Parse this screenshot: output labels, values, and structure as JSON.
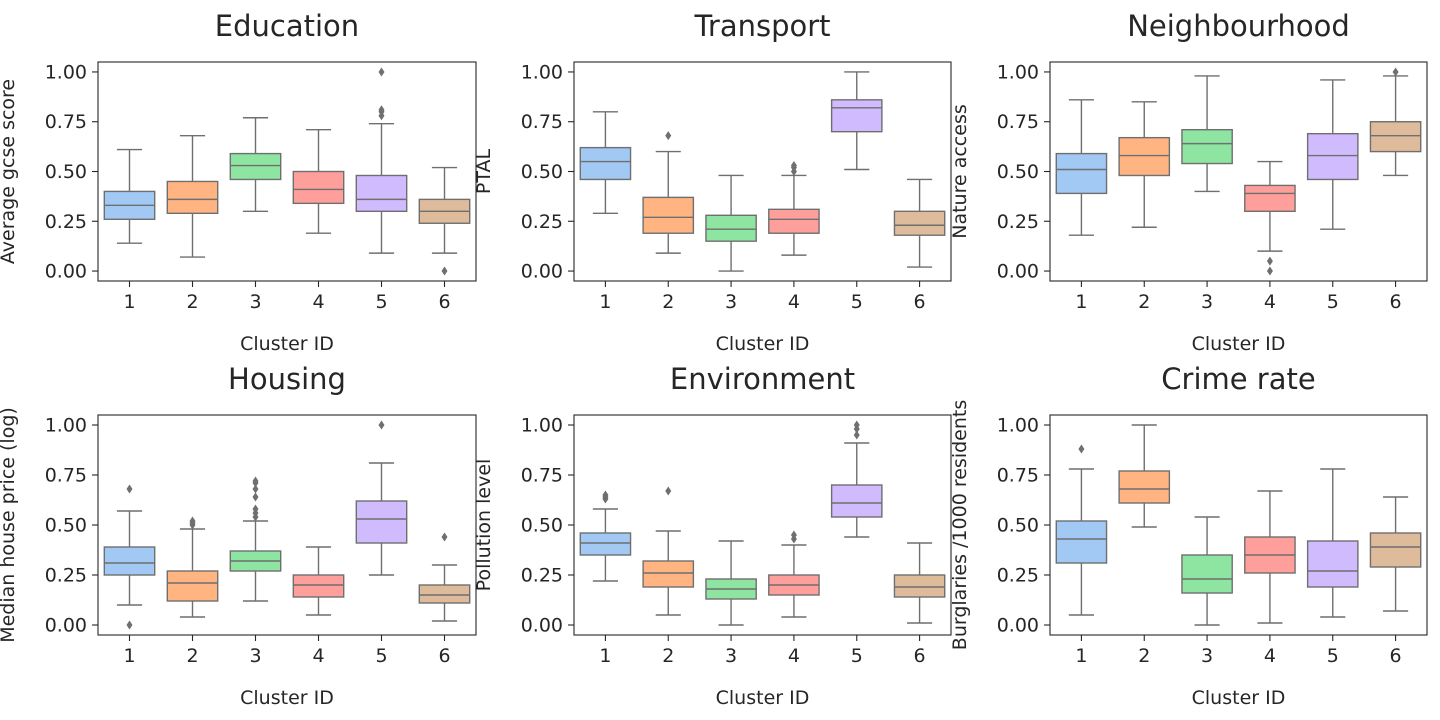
{
  "chart_data": [
    {
      "type": "box",
      "title": "Education",
      "xlabel": "Cluster ID",
      "ylabel": "Average gcse score",
      "categories": [
        "1",
        "2",
        "3",
        "4",
        "5",
        "6"
      ],
      "yticks": [
        "0.00",
        "0.25",
        "0.50",
        "0.75",
        "1.00"
      ],
      "ylim": [
        -0.05,
        1.05
      ],
      "boxes": [
        {
          "whislo": 0.14,
          "q1": 0.26,
          "med": 0.33,
          "q3": 0.4,
          "whishi": 0.61,
          "fliers": []
        },
        {
          "whislo": 0.07,
          "q1": 0.29,
          "med": 0.36,
          "q3": 0.45,
          "whishi": 0.68,
          "fliers": []
        },
        {
          "whislo": 0.3,
          "q1": 0.46,
          "med": 0.53,
          "q3": 0.59,
          "whishi": 0.77,
          "fliers": []
        },
        {
          "whislo": 0.19,
          "q1": 0.34,
          "med": 0.41,
          "q3": 0.5,
          "whishi": 0.71,
          "fliers": []
        },
        {
          "whislo": 0.09,
          "q1": 0.3,
          "med": 0.36,
          "q3": 0.48,
          "whishi": 0.74,
          "fliers": [
            0.78,
            0.8,
            0.81,
            1.0
          ]
        },
        {
          "whislo": 0.09,
          "q1": 0.24,
          "med": 0.3,
          "q3": 0.36,
          "whishi": 0.52,
          "fliers": [
            0.0
          ]
        }
      ]
    },
    {
      "type": "box",
      "title": "Transport",
      "xlabel": "Cluster ID",
      "ylabel": "PTAL",
      "categories": [
        "1",
        "2",
        "3",
        "4",
        "5",
        "6"
      ],
      "yticks": [
        "0.00",
        "0.25",
        "0.50",
        "0.75",
        "1.00"
      ],
      "ylim": [
        -0.05,
        1.05
      ],
      "boxes": [
        {
          "whislo": 0.29,
          "q1": 0.46,
          "med": 0.55,
          "q3": 0.62,
          "whishi": 0.8,
          "fliers": []
        },
        {
          "whislo": 0.09,
          "q1": 0.19,
          "med": 0.27,
          "q3": 0.37,
          "whishi": 0.6,
          "fliers": [
            0.68
          ]
        },
        {
          "whislo": 0.0,
          "q1": 0.15,
          "med": 0.21,
          "q3": 0.28,
          "whishi": 0.48,
          "fliers": []
        },
        {
          "whislo": 0.08,
          "q1": 0.19,
          "med": 0.26,
          "q3": 0.31,
          "whishi": 0.48,
          "fliers": [
            0.5,
            0.52,
            0.53
          ]
        },
        {
          "whislo": 0.51,
          "q1": 0.7,
          "med": 0.82,
          "q3": 0.86,
          "whishi": 1.0,
          "fliers": []
        },
        {
          "whislo": 0.02,
          "q1": 0.18,
          "med": 0.23,
          "q3": 0.3,
          "whishi": 0.46,
          "fliers": []
        }
      ]
    },
    {
      "type": "box",
      "title": "Neighbourhood",
      "xlabel": "Cluster ID",
      "ylabel": "Nature access",
      "categories": [
        "1",
        "2",
        "3",
        "4",
        "5",
        "6"
      ],
      "yticks": [
        "0.00",
        "0.25",
        "0.50",
        "0.75",
        "1.00"
      ],
      "ylim": [
        -0.05,
        1.05
      ],
      "boxes": [
        {
          "whislo": 0.18,
          "q1": 0.39,
          "med": 0.51,
          "q3": 0.59,
          "whishi": 0.86,
          "fliers": []
        },
        {
          "whislo": 0.22,
          "q1": 0.48,
          "med": 0.58,
          "q3": 0.67,
          "whishi": 0.85,
          "fliers": []
        },
        {
          "whislo": 0.4,
          "q1": 0.54,
          "med": 0.64,
          "q3": 0.71,
          "whishi": 0.98,
          "fliers": []
        },
        {
          "whislo": 0.1,
          "q1": 0.3,
          "med": 0.39,
          "q3": 0.43,
          "whishi": 0.55,
          "fliers": [
            0.05,
            0.0
          ]
        },
        {
          "whislo": 0.21,
          "q1": 0.46,
          "med": 0.58,
          "q3": 0.69,
          "whishi": 0.96,
          "fliers": []
        },
        {
          "whislo": 0.48,
          "q1": 0.6,
          "med": 0.68,
          "q3": 0.75,
          "whishi": 0.98,
          "fliers": [
            1.0
          ]
        }
      ]
    },
    {
      "type": "box",
      "title": "Housing",
      "xlabel": "Cluster ID",
      "ylabel": "Median house price (log)",
      "categories": [
        "1",
        "2",
        "3",
        "4",
        "5",
        "6"
      ],
      "yticks": [
        "0.00",
        "0.25",
        "0.50",
        "0.75",
        "1.00"
      ],
      "ylim": [
        -0.05,
        1.05
      ],
      "boxes": [
        {
          "whislo": 0.1,
          "q1": 0.25,
          "med": 0.31,
          "q3": 0.39,
          "whishi": 0.57,
          "fliers": [
            0.68,
            0.0
          ]
        },
        {
          "whislo": 0.04,
          "q1": 0.12,
          "med": 0.21,
          "q3": 0.27,
          "whishi": 0.48,
          "fliers": [
            0.5,
            0.51,
            0.52
          ]
        },
        {
          "whislo": 0.12,
          "q1": 0.27,
          "med": 0.32,
          "q3": 0.37,
          "whishi": 0.52,
          "fliers": [
            0.54,
            0.56,
            0.58,
            0.64,
            0.68,
            0.71,
            0.72
          ]
        },
        {
          "whislo": 0.05,
          "q1": 0.14,
          "med": 0.2,
          "q3": 0.25,
          "whishi": 0.39,
          "fliers": []
        },
        {
          "whislo": 0.25,
          "q1": 0.41,
          "med": 0.53,
          "q3": 0.62,
          "whishi": 0.81,
          "fliers": [
            1.0
          ]
        },
        {
          "whislo": 0.02,
          "q1": 0.11,
          "med": 0.15,
          "q3": 0.2,
          "whishi": 0.3,
          "fliers": [
            0.44
          ]
        }
      ]
    },
    {
      "type": "box",
      "title": "Environment",
      "xlabel": "Cluster ID",
      "ylabel": "Pollution level",
      "categories": [
        "1",
        "2",
        "3",
        "4",
        "5",
        "6"
      ],
      "yticks": [
        "0.00",
        "0.25",
        "0.50",
        "0.75",
        "1.00"
      ],
      "ylim": [
        -0.05,
        1.05
      ],
      "boxes": [
        {
          "whislo": 0.22,
          "q1": 0.35,
          "med": 0.41,
          "q3": 0.46,
          "whishi": 0.58,
          "fliers": [
            0.63,
            0.64,
            0.65
          ]
        },
        {
          "whislo": 0.05,
          "q1": 0.19,
          "med": 0.26,
          "q3": 0.32,
          "whishi": 0.47,
          "fliers": [
            0.67
          ]
        },
        {
          "whislo": 0.0,
          "q1": 0.13,
          "med": 0.18,
          "q3": 0.23,
          "whishi": 0.42,
          "fliers": []
        },
        {
          "whislo": 0.04,
          "q1": 0.15,
          "med": 0.2,
          "q3": 0.25,
          "whishi": 0.4,
          "fliers": [
            0.43,
            0.45
          ]
        },
        {
          "whislo": 0.44,
          "q1": 0.54,
          "med": 0.61,
          "q3": 0.7,
          "whishi": 0.91,
          "fliers": [
            0.95,
            0.98,
            1.0
          ]
        },
        {
          "whislo": 0.01,
          "q1": 0.14,
          "med": 0.19,
          "q3": 0.25,
          "whishi": 0.41,
          "fliers": []
        }
      ]
    },
    {
      "type": "box",
      "title": "Crime rate",
      "xlabel": "Cluster ID",
      "ylabel": "Burglaries /1000 residents",
      "categories": [
        "1",
        "2",
        "3",
        "4",
        "5",
        "6"
      ],
      "yticks": [
        "0.00",
        "0.25",
        "0.50",
        "0.75",
        "1.00"
      ],
      "ylim": [
        -0.05,
        1.05
      ],
      "boxes": [
        {
          "whislo": 0.05,
          "q1": 0.31,
          "med": 0.43,
          "q3": 0.52,
          "whishi": 0.78,
          "fliers": [
            0.88
          ]
        },
        {
          "whislo": 0.49,
          "q1": 0.61,
          "med": 0.68,
          "q3": 0.77,
          "whishi": 1.0,
          "fliers": []
        },
        {
          "whislo": 0.0,
          "q1": 0.16,
          "med": 0.23,
          "q3": 0.35,
          "whishi": 0.54,
          "fliers": []
        },
        {
          "whislo": 0.01,
          "q1": 0.26,
          "med": 0.35,
          "q3": 0.44,
          "whishi": 0.67,
          "fliers": []
        },
        {
          "whislo": 0.04,
          "q1": 0.19,
          "med": 0.27,
          "q3": 0.42,
          "whishi": 0.78,
          "fliers": []
        },
        {
          "whislo": 0.07,
          "q1": 0.29,
          "med": 0.39,
          "q3": 0.46,
          "whishi": 0.64,
          "fliers": []
        }
      ]
    }
  ],
  "colors": [
    "#a1c9f4",
    "#ffb482",
    "#8de5a1",
    "#ff9f9b",
    "#d0bbff",
    "#debb9b"
  ]
}
